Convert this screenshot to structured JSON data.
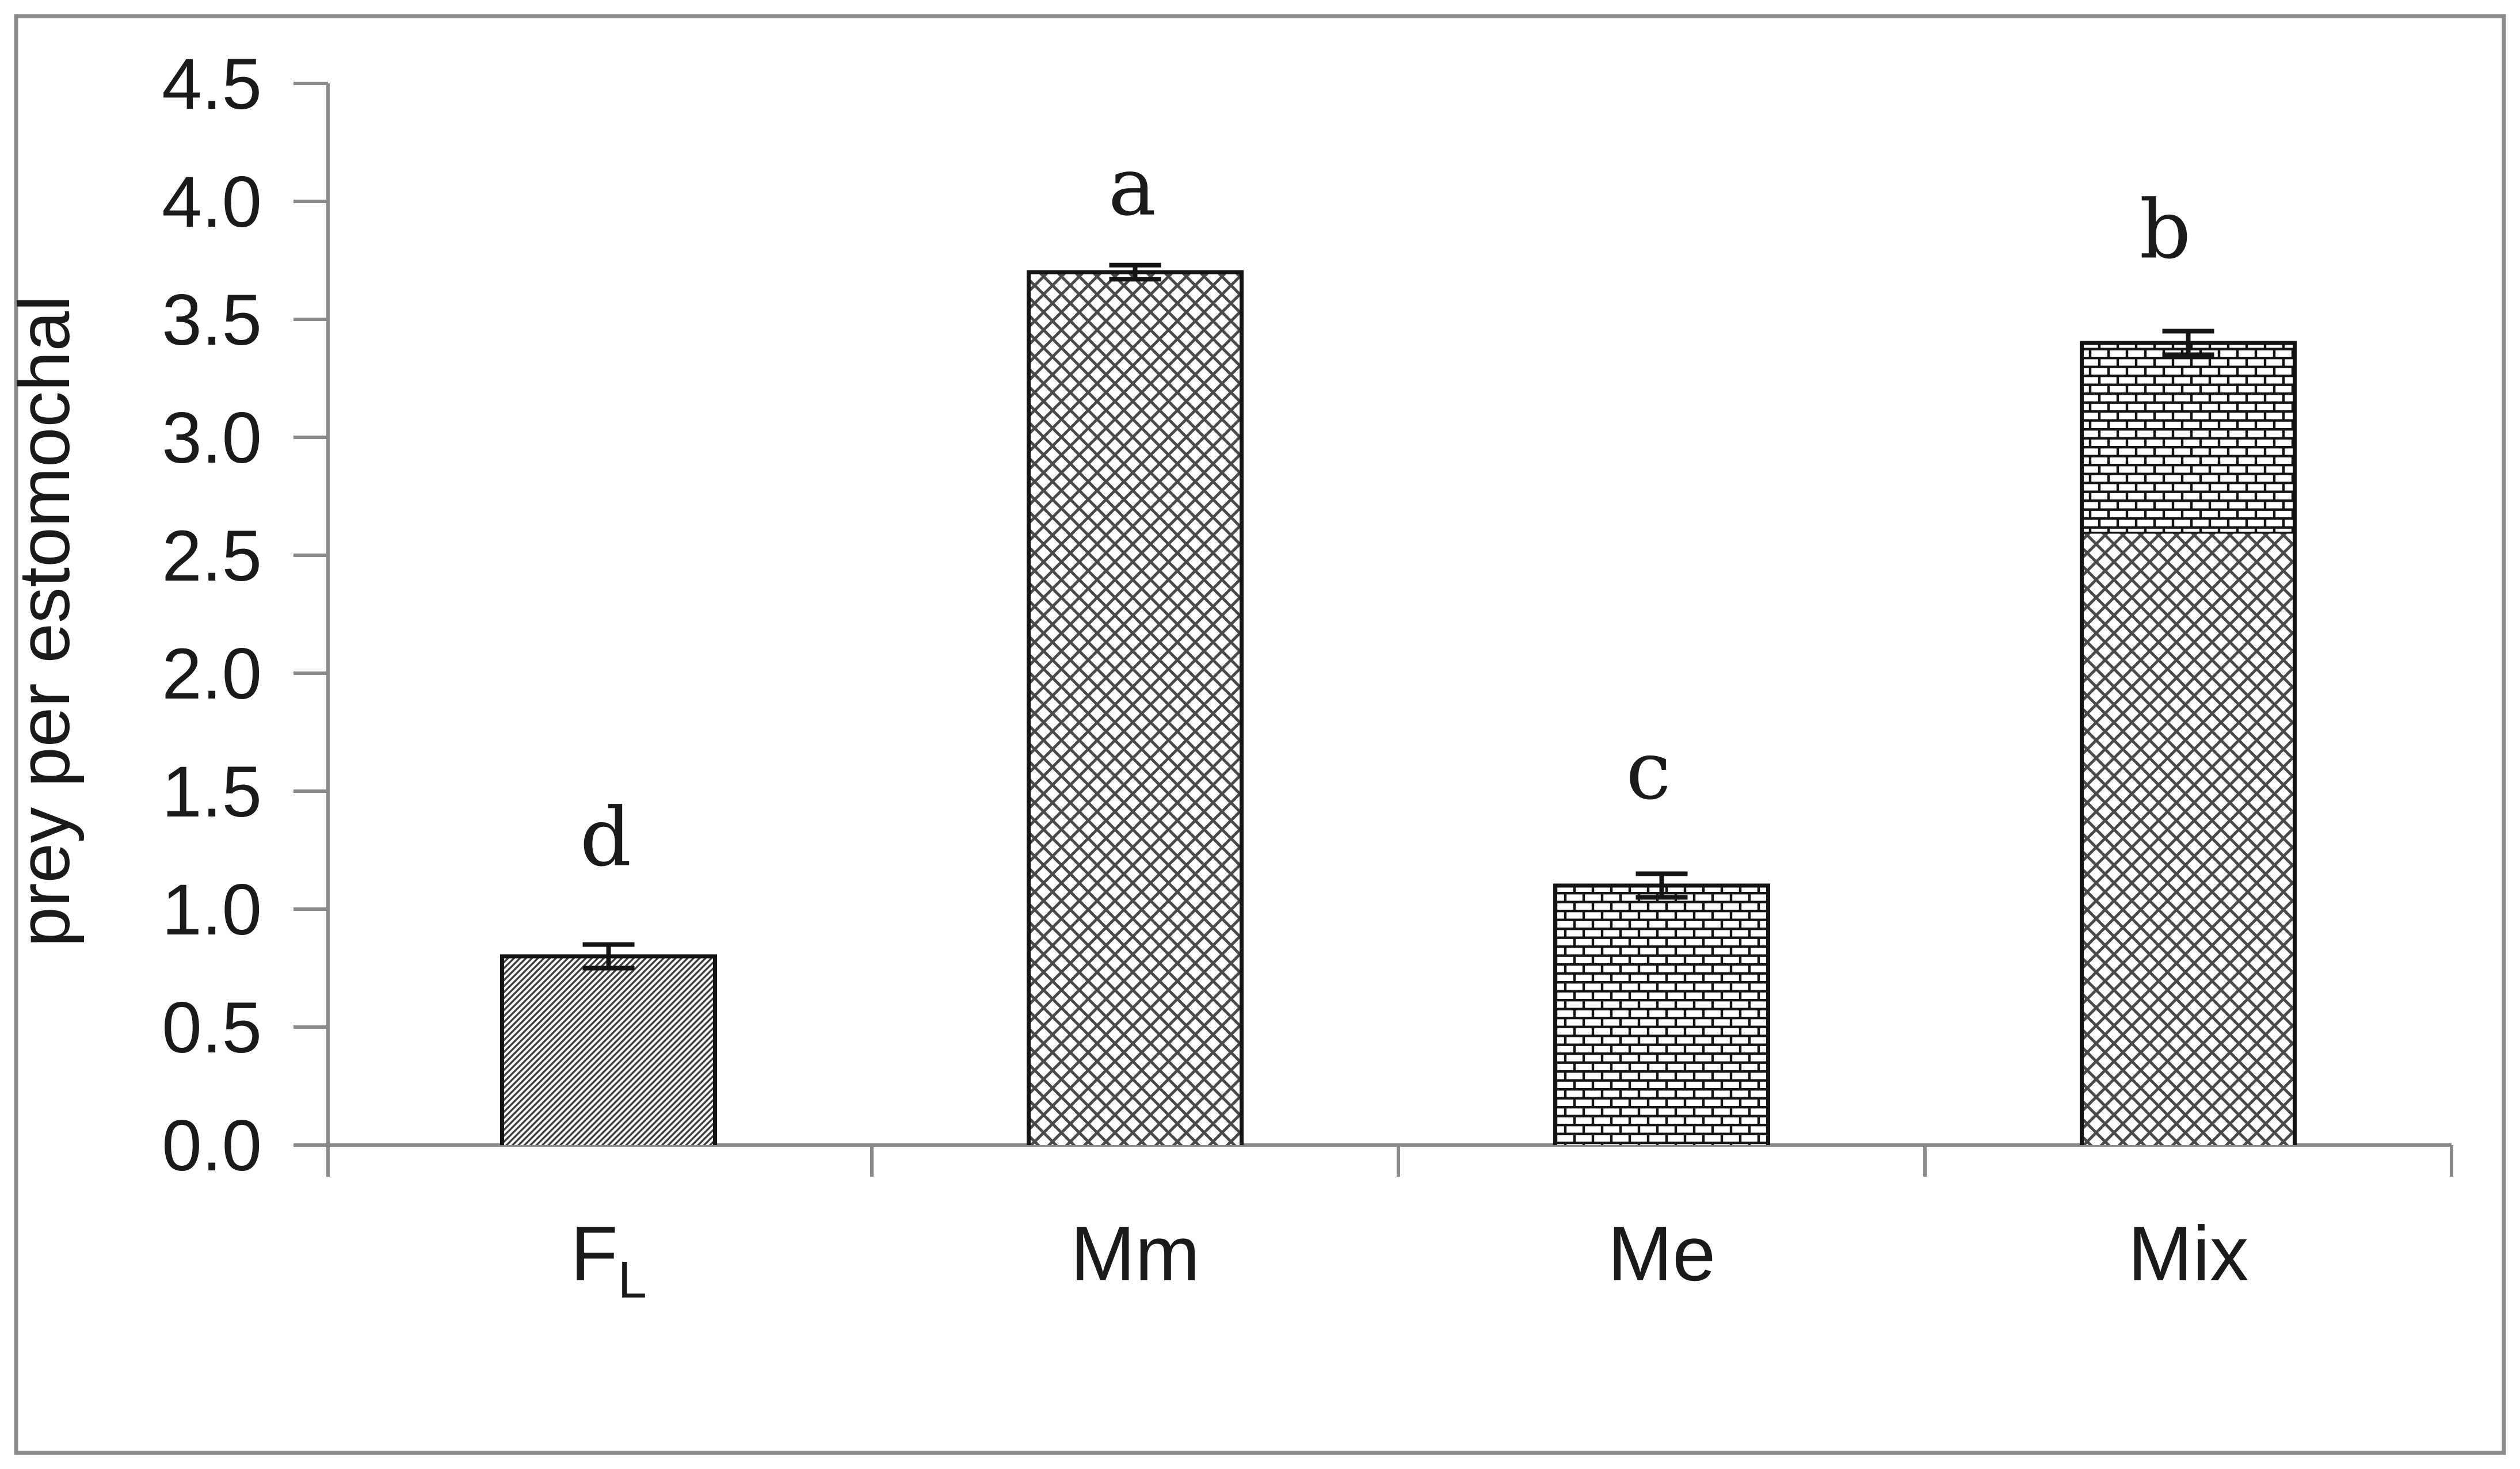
{
  "figure": {
    "background": "#ffffff",
    "border_color": "#8c8c8c"
  },
  "chart_data": {
    "type": "bar",
    "stacked": true,
    "title": "",
    "xlabel": "",
    "ylabel": "prey per estomochal",
    "ylim": [
      0,
      4.5
    ],
    "grid": false,
    "legend": "none",
    "axis_color": "#8a8a8a",
    "ink_color": "#141414",
    "hatch_colors": {
      "diagonal-hatch": "#3c3c3c",
      "cross-hatch": "#4a4a4a",
      "brick": "#141414"
    },
    "y_ticks": [
      {
        "value": 0.0,
        "label": "0.0"
      },
      {
        "value": 0.5,
        "label": "0.5"
      },
      {
        "value": 1.0,
        "label": "1.0"
      },
      {
        "value": 1.5,
        "label": "1.5"
      },
      {
        "value": 2.0,
        "label": "2.0"
      },
      {
        "value": 2.5,
        "label": "2.5"
      },
      {
        "value": 3.0,
        "label": "3.0"
      },
      {
        "value": 3.5,
        "label": "3.5"
      },
      {
        "value": 4.0,
        "label": "4.0"
      },
      {
        "value": 4.5,
        "label": "4.5"
      }
    ],
    "categories": [
      {
        "label": "F",
        "subscript": "L"
      },
      {
        "label": "Mm",
        "subscript": ""
      },
      {
        "label": "Me",
        "subscript": ""
      },
      {
        "label": "Mix",
        "subscript": ""
      }
    ],
    "bars": [
      {
        "category": "FL",
        "segments": [
          {
            "pattern": "diagonal-hatch",
            "value": 0.8
          }
        ],
        "total": 0.8,
        "error": 0.05,
        "letter": "d"
      },
      {
        "category": "Mm",
        "segments": [
          {
            "pattern": "cross-hatch",
            "value": 3.7
          }
        ],
        "total": 3.7,
        "error": 0.03,
        "letter": "a"
      },
      {
        "category": "Me",
        "segments": [
          {
            "pattern": "brick",
            "value": 1.1
          }
        ],
        "total": 1.1,
        "error": 0.05,
        "letter": "c"
      },
      {
        "category": "Mix",
        "segments": [
          {
            "pattern": "cross-hatch",
            "value": 2.6
          },
          {
            "pattern": "brick",
            "value": 0.8
          }
        ],
        "total": 3.4,
        "error": 0.05,
        "letter": "b"
      }
    ]
  }
}
